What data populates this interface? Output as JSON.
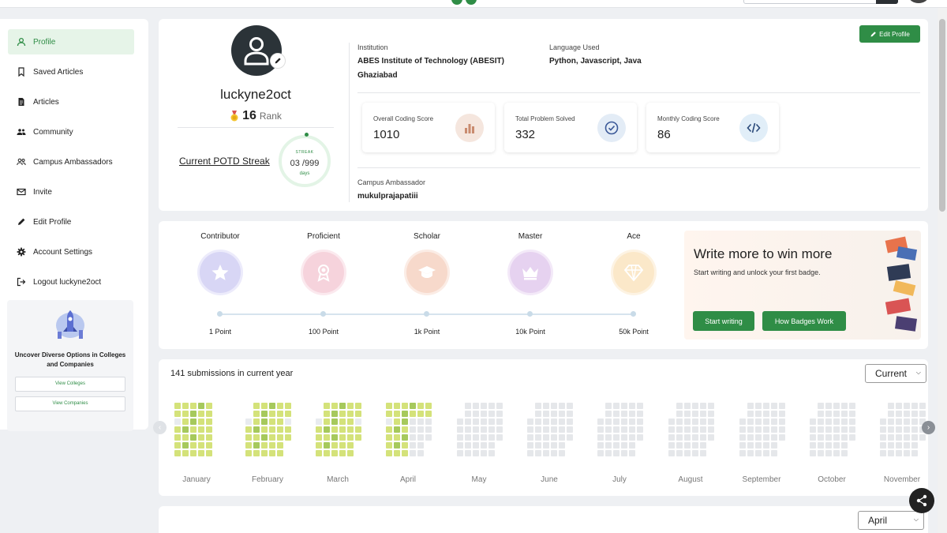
{
  "sidebar": {
    "items": [
      {
        "label": "Profile",
        "icon": "person-icon"
      },
      {
        "label": "Saved Articles",
        "icon": "bookmark-icon"
      },
      {
        "label": "Articles",
        "icon": "document-icon"
      },
      {
        "label": "Community",
        "icon": "group-icon"
      },
      {
        "label": "Campus Ambassadors",
        "icon": "ambassadors-icon"
      },
      {
        "label": "Invite",
        "icon": "mail-icon"
      },
      {
        "label": "Edit Profile",
        "icon": "pencil-icon"
      },
      {
        "label": "Account Settings",
        "icon": "gear-icon"
      },
      {
        "label": "Logout luckyne2oct",
        "icon": "logout-icon"
      }
    ],
    "promo": {
      "text": "Uncover Diverse Options in Colleges and Companies",
      "view_colleges": "View Colleges",
      "view_companies": "View Companies"
    }
  },
  "profile": {
    "username": "luckyne2oct",
    "rank_value": "16",
    "rank_label": "Rank",
    "streak_link": "Current POTD Streak",
    "streak_label": "STREAK",
    "streak_value": "03 /999",
    "streak_unit": "days",
    "edit_button": "Edit Profile",
    "institution_label": "Institution",
    "institution_value": "ABES Institute of Technology (ABESIT)",
    "institution_city": "Ghaziabad",
    "language_label": "Language Used",
    "language_value": "Python, Javascript, Java",
    "campus_label": "Campus Ambassador",
    "campus_value": "mukulprajapatiii",
    "stats": [
      {
        "label": "Overall Coding Score",
        "value": "1010",
        "icon": "bar-chart-icon",
        "color": "#f5e6de"
      },
      {
        "label": "Total Problem Solved",
        "value": "332",
        "icon": "check-circle-icon",
        "color": "#e3ecf6"
      },
      {
        "label": "Monthly Coding Score",
        "value": "86",
        "icon": "code-icon",
        "color": "#e1eef8"
      }
    ]
  },
  "badges": {
    "items": [
      {
        "name": "Contributor",
        "points": "1 Point",
        "color": "#d8d6f5",
        "icon": "star-icon"
      },
      {
        "name": "Proficient",
        "points": "100 Point",
        "color": "#f6d3dc",
        "icon": "ribbon-icon"
      },
      {
        "name": "Scholar",
        "points": "1k Point",
        "color": "#f7d9cb",
        "icon": "mortarboard-icon"
      },
      {
        "name": "Master",
        "points": "10k Point",
        "color": "#e6d2f0",
        "icon": "crown-icon"
      },
      {
        "name": "Ace",
        "points": "50k Point",
        "color": "#fbe8c9",
        "icon": "diamond-icon"
      }
    ],
    "write_title": "Write more to win more",
    "write_sub": "Start writing and unlock your first badge.",
    "start_writing": "Start writing",
    "how_badges": "How Badges Work"
  },
  "submissions": {
    "title": "141 submissions in current year",
    "select_value": "Current",
    "months": [
      "January",
      "February",
      "March",
      "April",
      "May",
      "June",
      "July",
      "August",
      "September",
      "October",
      "November"
    ]
  },
  "bottom": {
    "select_value": "April"
  }
}
